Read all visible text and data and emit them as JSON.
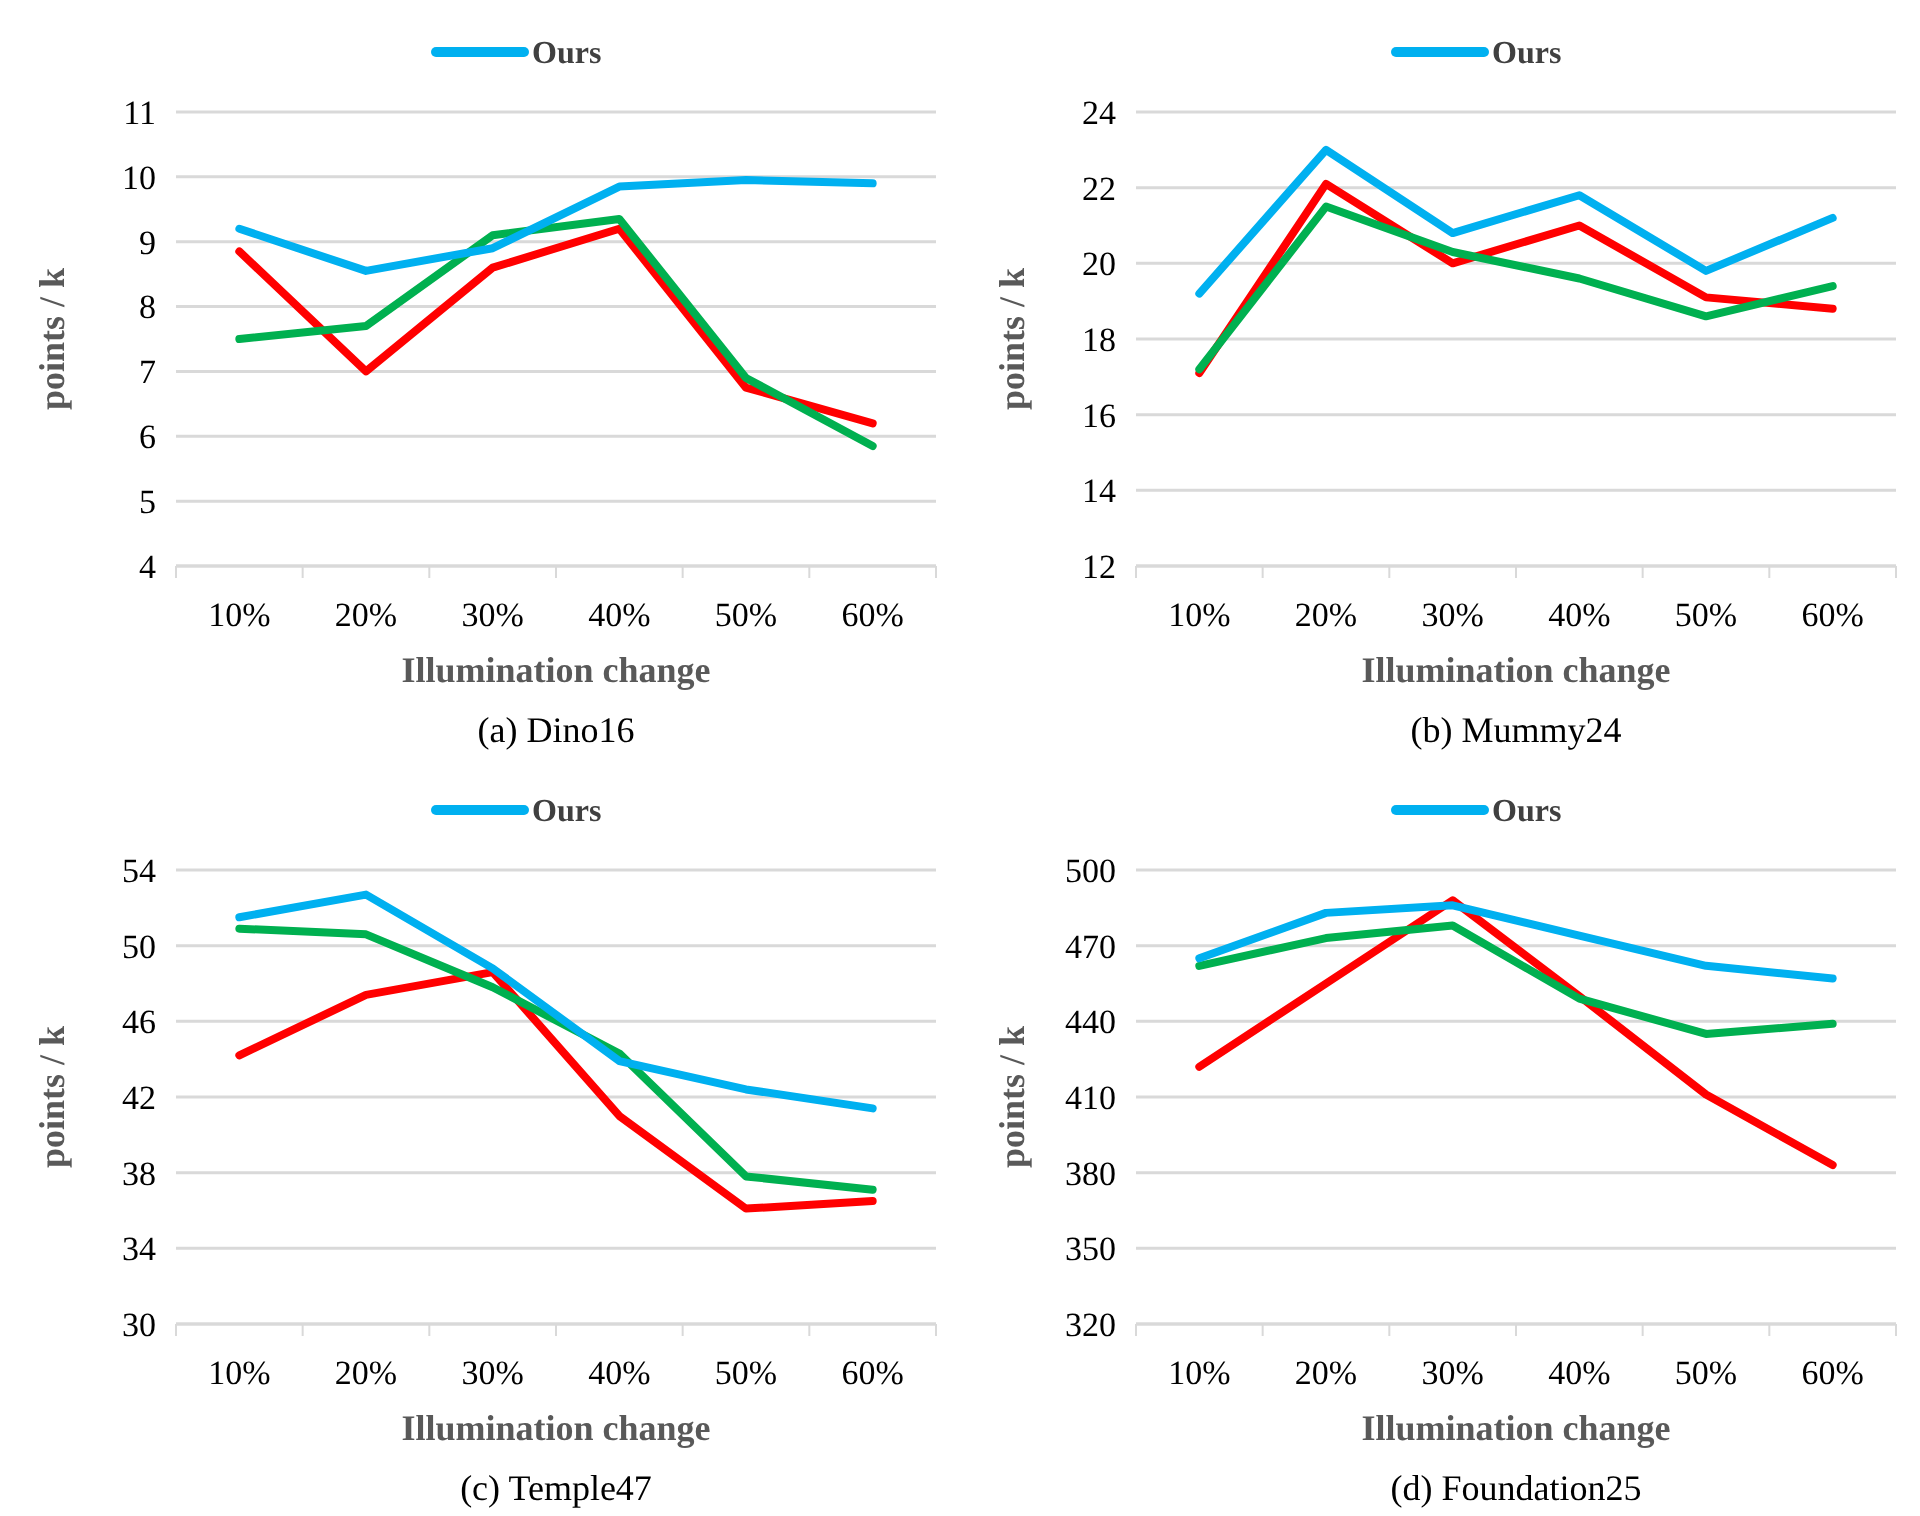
{
  "chart_data": [
    {
      "type": "line",
      "title": "(a) Dino16",
      "xlabel": "Illumination change",
      "ylabel": "points / k",
      "categories": [
        "10%",
        "20%",
        "30%",
        "40%",
        "50%",
        "60%"
      ],
      "ylim": [
        4,
        11
      ],
      "yticks": [
        4,
        5,
        6,
        7,
        8,
        9,
        10,
        11
      ],
      "grid": "y",
      "legend": "top",
      "series": [
        {
          "color": "#ff0000",
          "values": [
            8.85,
            7.0,
            8.6,
            9.2,
            6.75,
            6.2
          ]
        },
        {
          "color": "#00b050",
          "values": [
            7.5,
            7.7,
            9.1,
            9.35,
            6.9,
            5.85
          ]
        },
        {
          "name": "Ours",
          "color": "#00b0f0",
          "values": [
            9.2,
            8.55,
            8.9,
            9.85,
            9.95,
            9.9
          ]
        }
      ]
    },
    {
      "type": "line",
      "title": "(b) Mummy24",
      "xlabel": "Illumination change",
      "ylabel": "points / k",
      "categories": [
        "10%",
        "20%",
        "30%",
        "40%",
        "50%",
        "60%"
      ],
      "ylim": [
        12,
        24
      ],
      "yticks": [
        12,
        14,
        16,
        18,
        20,
        22,
        24
      ],
      "grid": "y",
      "legend": "top",
      "series": [
        {
          "color": "#ff0000",
          "values": [
            17.1,
            22.1,
            20.0,
            21.0,
            19.1,
            18.8
          ]
        },
        {
          "color": "#00b050",
          "values": [
            17.2,
            21.5,
            20.3,
            19.6,
            18.6,
            19.4
          ]
        },
        {
          "name": "Ours",
          "color": "#00b0f0",
          "values": [
            19.2,
            23.0,
            20.8,
            21.8,
            19.8,
            21.2
          ]
        }
      ]
    },
    {
      "type": "line",
      "title": "(c) Temple47",
      "xlabel": "Illumination change",
      "ylabel": "points / k",
      "categories": [
        "10%",
        "20%",
        "30%",
        "40%",
        "50%",
        "60%"
      ],
      "ylim": [
        30,
        54
      ],
      "yticks": [
        30,
        34,
        38,
        42,
        46,
        50,
        54
      ],
      "grid": "y",
      "legend": "top",
      "series": [
        {
          "color": "#ff0000",
          "values": [
            44.2,
            47.4,
            48.6,
            41.0,
            36.1,
            36.5
          ]
        },
        {
          "color": "#00b050",
          "values": [
            50.9,
            50.6,
            47.8,
            44.3,
            37.8,
            37.1
          ]
        },
        {
          "name": "Ours",
          "color": "#00b0f0",
          "values": [
            51.5,
            52.7,
            48.8,
            43.9,
            42.4,
            41.4
          ]
        }
      ]
    },
    {
      "type": "line",
      "title": "(d) Foundation25",
      "xlabel": "Illumination change",
      "ylabel": "points / k",
      "categories": [
        "10%",
        "20%",
        "30%",
        "40%",
        "50%",
        "60%"
      ],
      "ylim": [
        320,
        500
      ],
      "yticks": [
        320,
        350,
        380,
        410,
        440,
        470,
        500
      ],
      "grid": "y",
      "legend": "top",
      "series": [
        {
          "color": "#ff0000",
          "values": [
            422,
            455,
            488,
            450,
            411,
            383
          ]
        },
        {
          "color": "#00b050",
          "values": [
            462,
            473,
            478,
            449,
            435,
            439
          ]
        },
        {
          "name": "Ours",
          "color": "#00b0f0",
          "values": [
            465,
            483,
            486,
            474,
            462,
            457
          ]
        }
      ]
    }
  ]
}
